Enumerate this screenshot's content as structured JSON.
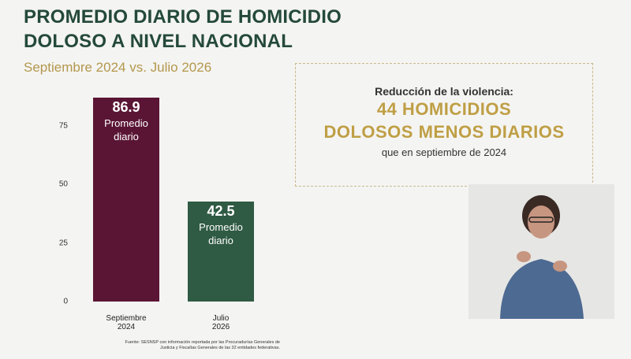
{
  "header": {
    "title_lines": [
      "PROMEDIO DIARIO DE HOMICIDIO",
      "DOLOSO A NIVEL NACIONAL"
    ],
    "subtitle": "Septiembre 2024 vs. Julio 2026"
  },
  "chart_data": {
    "type": "bar",
    "categories": [
      "Septiembre 2024",
      "Julio 2026"
    ],
    "values": [
      86.9,
      42.5
    ],
    "colors": [
      "#5a1535",
      "#2f5a43"
    ],
    "bar_annotation": "Promedio diario",
    "ylim": [
      0,
      90
    ],
    "yticks": [
      0,
      25,
      50,
      75
    ],
    "grid": false
  },
  "callout": {
    "heading": "Reducción de la violencia:",
    "highlight_lines": [
      "44 HOMICIDIOS",
      "DOLOSOS MENOS DIARIOS"
    ],
    "footer": "que en septiembre de 2024"
  },
  "source": "Fuente: SESNSP con información reportada por las Procuradurías Generales de Justicia y Fiscalías Generales de las 32 entidades federativas."
}
